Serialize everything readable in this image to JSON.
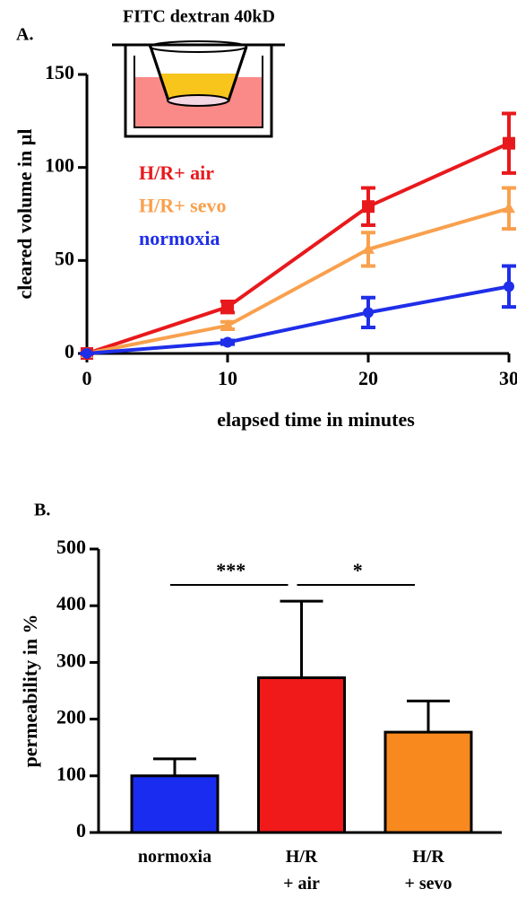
{
  "chart_data": [
    {
      "type": "line",
      "panel": "A.",
      "inset_title": "FITC dextran 40kD",
      "x_label": "elapsed time in minutes",
      "y_label": "cleared volume in µl",
      "x": [
        0,
        10,
        20,
        30
      ],
      "xlim": [
        0,
        30
      ],
      "xticks": [
        0,
        10,
        20,
        30
      ],
      "ylim": [
        0,
        150
      ],
      "yticks": [
        0,
        50,
        100,
        150
      ],
      "series": [
        {
          "name": "H/R+ air",
          "color": "#e8191c",
          "marker": "square",
          "values": [
            0,
            25,
            79,
            113
          ],
          "errors": [
            0,
            3,
            10,
            16
          ]
        },
        {
          "name": "H/R+ sevo",
          "color": "#f9a04d",
          "marker": "triangle",
          "values": [
            0,
            15,
            56,
            78
          ],
          "errors": [
            0,
            2,
            9,
            11
          ]
        },
        {
          "name": "normoxia",
          "color": "#1f2ee8",
          "marker": "circle",
          "values": [
            0,
            6,
            22,
            36
          ],
          "errors": [
            0,
            1,
            8,
            11
          ]
        }
      ]
    },
    {
      "type": "bar",
      "panel": "B.",
      "y_label": "permeability in %",
      "categories": [
        "normoxia",
        "H/R\n+ air",
        "H/R\n+ sevo"
      ],
      "values": [
        100,
        273,
        177
      ],
      "errors": [
        30,
        135,
        55
      ],
      "colors": [
        "#1a2cf0",
        "#f01a1a",
        "#f7891f"
      ],
      "ylim": [
        0,
        500
      ],
      "yticks": [
        0,
        100,
        200,
        300,
        400,
        500
      ],
      "annotations": [
        "***",
        "*"
      ]
    }
  ]
}
